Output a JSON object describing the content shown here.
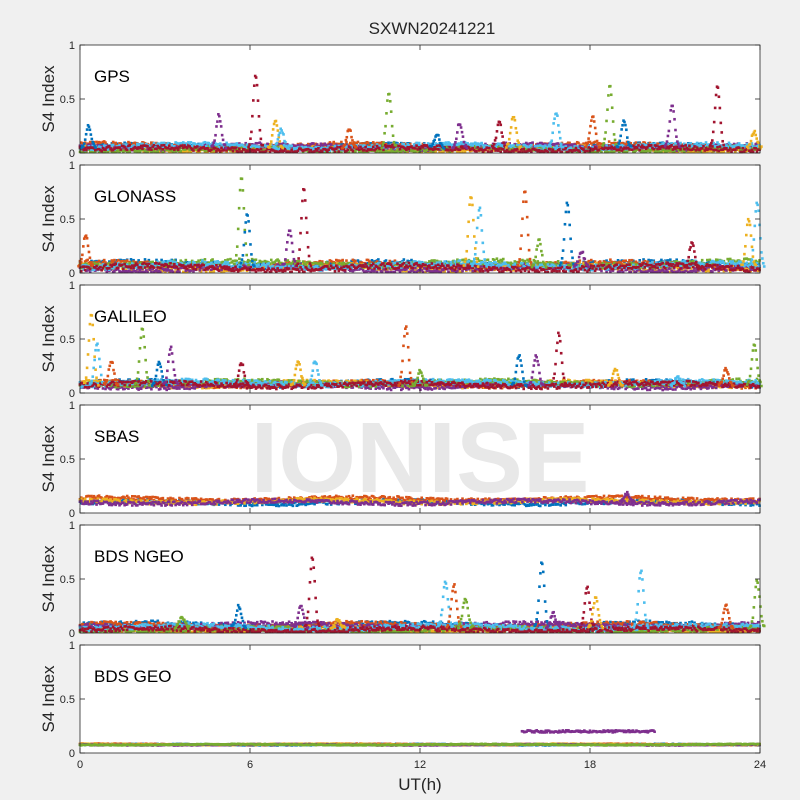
{
  "figure": {
    "title": "SXWN20241221",
    "xlabel": "UT(h)",
    "watermark": "IONISE",
    "background": "#f0f0f0",
    "axes_background": "#ffffff"
  },
  "chart_data": [
    {
      "type": "scatter",
      "title": "GPS",
      "ylabel": "S4 Index",
      "xlim": [
        0,
        24
      ],
      "ylim": [
        0,
        1
      ],
      "yticks": [
        "0",
        "0.5",
        "1"
      ],
      "xticks": [],
      "baseline": 0.05,
      "noise": 0.05,
      "series_count": 7,
      "spikes": [
        [
          0.3,
          0.25
        ],
        [
          4.9,
          0.35
        ],
        [
          6.2,
          0.72
        ],
        [
          6.9,
          0.3
        ],
        [
          7.1,
          0.22
        ],
        [
          9.5,
          0.22
        ],
        [
          10.9,
          0.55
        ],
        [
          12.6,
          0.18
        ],
        [
          13.4,
          0.28
        ],
        [
          14.8,
          0.28
        ],
        [
          15.3,
          0.35
        ],
        [
          16.8,
          0.38
        ],
        [
          18.1,
          0.35
        ],
        [
          18.7,
          0.62
        ],
        [
          19.2,
          0.3
        ],
        [
          20.9,
          0.45
        ],
        [
          22.5,
          0.62
        ],
        [
          23.8,
          0.2
        ]
      ]
    },
    {
      "type": "scatter",
      "title": "GLONASS",
      "ylabel": "S4 Index",
      "xlim": [
        0,
        24
      ],
      "ylim": [
        0,
        1
      ],
      "yticks": [
        "0",
        "0.5",
        "1"
      ],
      "xticks": [],
      "baseline": 0.06,
      "noise": 0.06,
      "series_count": 7,
      "spikes": [
        [
          0.2,
          0.35
        ],
        [
          5.7,
          0.9
        ],
        [
          5.9,
          0.55
        ],
        [
          7.4,
          0.4
        ],
        [
          7.9,
          0.78
        ],
        [
          13.8,
          0.72
        ],
        [
          14.1,
          0.6
        ],
        [
          15.7,
          0.75
        ],
        [
          16.2,
          0.3
        ],
        [
          17.2,
          0.65
        ],
        [
          17.7,
          0.2
        ],
        [
          21.6,
          0.28
        ],
        [
          23.6,
          0.5
        ],
        [
          23.9,
          0.65
        ]
      ]
    },
    {
      "type": "scatter",
      "title": "GALILEO",
      "ylabel": "S4 Index",
      "xlim": [
        0,
        24
      ],
      "ylim": [
        0,
        1
      ],
      "yticks": [
        "0",
        "0.5",
        "1"
      ],
      "xticks": [],
      "baseline": 0.07,
      "noise": 0.05,
      "series_count": 7,
      "spikes": [
        [
          0.4,
          0.72
        ],
        [
          0.6,
          0.45
        ],
        [
          1.1,
          0.3
        ],
        [
          2.2,
          0.6
        ],
        [
          2.8,
          0.28
        ],
        [
          3.2,
          0.42
        ],
        [
          5.7,
          0.28
        ],
        [
          7.7,
          0.3
        ],
        [
          8.3,
          0.3
        ],
        [
          11.5,
          0.62
        ],
        [
          12.0,
          0.2
        ],
        [
          15.5,
          0.35
        ],
        [
          16.1,
          0.35
        ],
        [
          16.9,
          0.55
        ],
        [
          18.9,
          0.22
        ],
        [
          21.1,
          0.15
        ],
        [
          22.8,
          0.22
        ],
        [
          23.8,
          0.45
        ]
      ]
    },
    {
      "type": "scatter",
      "title": "SBAS",
      "ylabel": "S4 Index",
      "xlim": [
        0,
        24
      ],
      "ylim": [
        0,
        1
      ],
      "yticks": [
        "0",
        "0.5",
        "1"
      ],
      "xticks": [],
      "baseline": 0.11,
      "noise": 0.04,
      "series_count": 4,
      "spikes": [
        [
          19.3,
          0.18
        ]
      ]
    },
    {
      "type": "scatter",
      "title": "BDS NGEO",
      "ylabel": "S4 Index",
      "xlim": [
        0,
        24
      ],
      "ylim": [
        0,
        1
      ],
      "yticks": [
        "0",
        "0.5",
        "1"
      ],
      "xticks": [],
      "baseline": 0.05,
      "noise": 0.05,
      "series_count": 7,
      "spikes": [
        [
          3.6,
          0.15
        ],
        [
          5.6,
          0.25
        ],
        [
          7.8,
          0.25
        ],
        [
          8.2,
          0.7
        ],
        [
          9.1,
          0.12
        ],
        [
          12.9,
          0.48
        ],
        [
          13.2,
          0.45
        ],
        [
          13.6,
          0.32
        ],
        [
          16.3,
          0.65
        ],
        [
          16.7,
          0.18
        ],
        [
          17.9,
          0.42
        ],
        [
          18.2,
          0.32
        ],
        [
          19.8,
          0.58
        ],
        [
          22.8,
          0.25
        ],
        [
          23.9,
          0.48
        ]
      ]
    },
    {
      "type": "scatter",
      "title": "BDS GEO",
      "ylabel": "S4 Index",
      "xlim": [
        0,
        24
      ],
      "ylim": [
        0,
        1
      ],
      "yticks": [
        "0",
        "0.5",
        "1"
      ],
      "xticks": [
        "0",
        "6",
        "12",
        "18",
        "24"
      ],
      "baseline": 0.08,
      "noise": 0.01,
      "series_count": 5,
      "spikes": [],
      "band": {
        "x_start": 15.6,
        "x_end": 20.3,
        "y": 0.2
      }
    }
  ],
  "palette": [
    "#0072BD",
    "#D95319",
    "#EDB120",
    "#7E2F8E",
    "#77AC30",
    "#4DBEEE",
    "#A2142F"
  ]
}
